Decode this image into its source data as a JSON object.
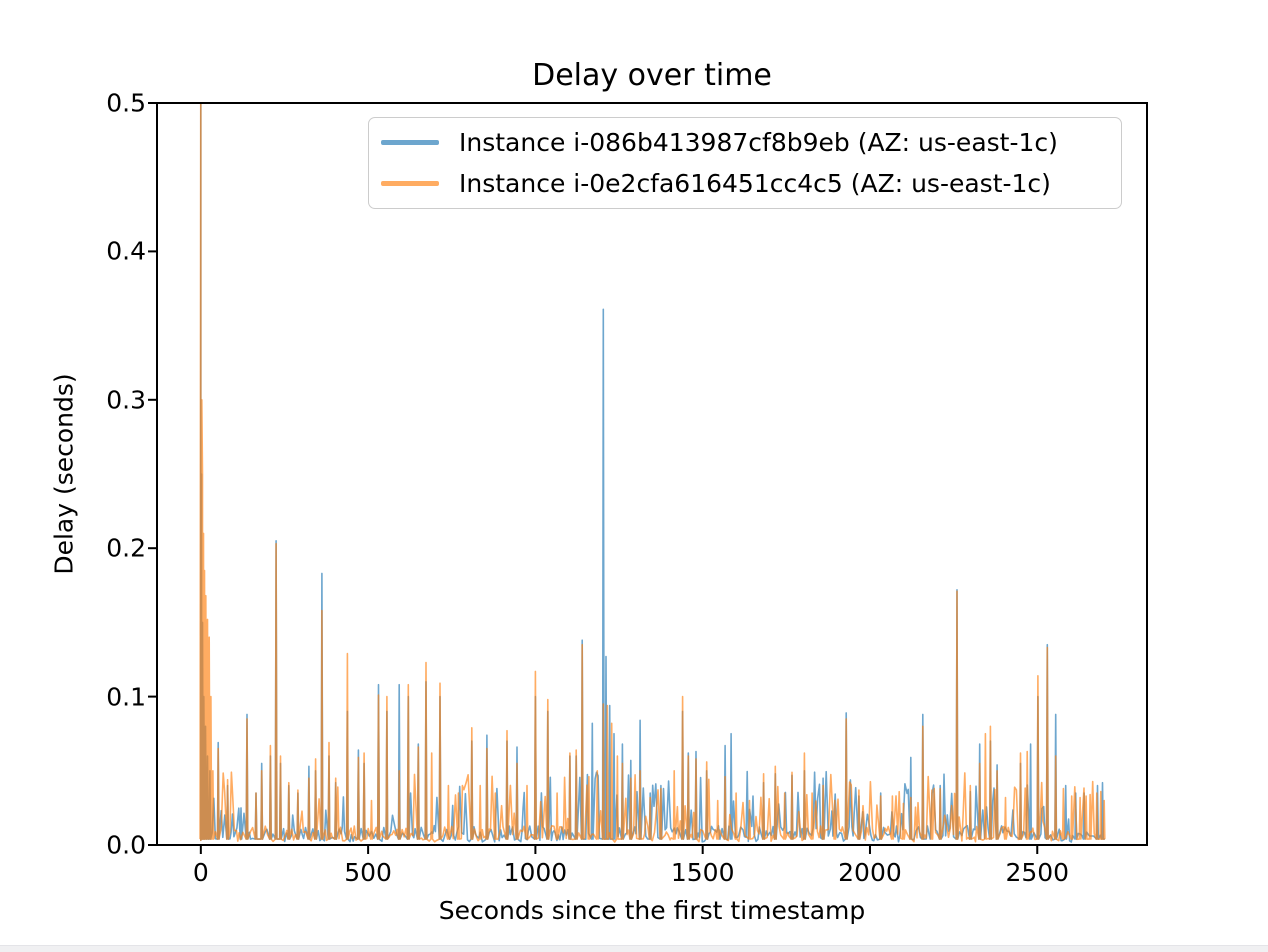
{
  "window": {
    "background_color": "#ffffff",
    "bottom_strip_color": "#f0f0f2"
  },
  "chart_data": {
    "type": "line",
    "title": "Delay over time",
    "xlabel": "Seconds since the first timestamp",
    "ylabel": "Delay (seconds)",
    "xlim": [
      -131,
      2828
    ],
    "ylim": [
      0,
      0.5
    ],
    "grid": false,
    "legend_position": "upper center",
    "axis_color": "#000000",
    "xticks": [
      {
        "label": "0",
        "value": 0
      },
      {
        "label": "500",
        "value": 500
      },
      {
        "label": "1000",
        "value": 1000
      },
      {
        "label": "1500",
        "value": 1500
      },
      {
        "label": "2000",
        "value": 2000
      },
      {
        "label": "2500",
        "value": 2500
      }
    ],
    "yticks": [
      {
        "label": "0.0",
        "value": 0.0
      },
      {
        "label": "0.1",
        "value": 0.1
      },
      {
        "label": "0.2",
        "value": 0.2
      },
      {
        "label": "0.3",
        "value": 0.3
      },
      {
        "label": "0.4",
        "value": 0.4
      },
      {
        "label": "0.5",
        "value": 0.5
      }
    ],
    "series": [
      {
        "name": "Instance i-086b413987cf8b9eb (AZ: us-east-1c)",
        "color": "#1f77b4",
        "alpha": 0.65,
        "baseline": 0.004,
        "x_start": 0,
        "x_end": 2702,
        "spikes": [
          [
            0,
            0.55
          ],
          [
            2,
            0.25
          ],
          [
            5,
            0.15
          ],
          [
            9,
            0.1
          ],
          [
            14,
            0.08
          ],
          [
            20,
            0.06
          ],
          [
            27,
            0.05
          ],
          [
            52,
            0.069
          ],
          [
            80,
            0.04
          ],
          [
            120,
            0.025
          ],
          [
            138,
            0.088
          ],
          [
            165,
            0.035
          ],
          [
            182,
            0.055
          ],
          [
            208,
            0.06
          ],
          [
            225,
            0.205
          ],
          [
            238,
            0.055
          ],
          [
            263,
            0.04
          ],
          [
            290,
            0.035
          ],
          [
            323,
            0.053
          ],
          [
            343,
            0.05
          ],
          [
            362,
            0.183
          ],
          [
            383,
            0.06
          ],
          [
            403,
            0.042
          ],
          [
            438,
            0.09
          ],
          [
            471,
            0.064
          ],
          [
            488,
            0.055
          ],
          [
            531,
            0.108
          ],
          [
            556,
            0.09
          ],
          [
            593,
            0.108
          ],
          [
            620,
            0.1
          ],
          [
            650,
            0.068
          ],
          [
            673,
            0.11
          ],
          [
            715,
            0.1
          ],
          [
            810,
            0.07
          ],
          [
            855,
            0.074
          ],
          [
            915,
            0.07
          ],
          [
            945,
            0.066
          ],
          [
            1000,
            0.1
          ],
          [
            1037,
            0.09
          ],
          [
            1103,
            0.06
          ],
          [
            1122,
            0.06
          ],
          [
            1140,
            0.138
          ],
          [
            1170,
            0.082
          ],
          [
            1203,
            0.361
          ],
          [
            1211,
            0.127
          ],
          [
            1222,
            0.094
          ],
          [
            1235,
            0.075
          ],
          [
            1260,
            0.068
          ],
          [
            1285,
            0.057
          ],
          [
            1313,
            0.084
          ],
          [
            1343,
            0.035
          ],
          [
            1375,
            0.04
          ],
          [
            1440,
            0.09
          ],
          [
            1457,
            0.062
          ],
          [
            1480,
            0.063
          ],
          [
            1512,
            0.05
          ],
          [
            1567,
            0.067
          ],
          [
            1585,
            0.075
          ],
          [
            1682,
            0.042
          ],
          [
            1717,
            0.048
          ],
          [
            1767,
            0.047
          ],
          [
            1804,
            0.05
          ],
          [
            1860,
            0.045
          ],
          [
            1929,
            0.089
          ],
          [
            1967,
            0.033
          ],
          [
            2032,
            0.035
          ],
          [
            2122,
            0.059
          ],
          [
            2158,
            0.088
          ],
          [
            2210,
            0.04
          ],
          [
            2260,
            0.172
          ],
          [
            2300,
            0.036
          ],
          [
            2328,
            0.068
          ],
          [
            2360,
            0.07
          ],
          [
            2380,
            0.054
          ],
          [
            2450,
            0.055
          ],
          [
            2480,
            0.068
          ],
          [
            2502,
            0.1
          ],
          [
            2530,
            0.135
          ],
          [
            2555,
            0.088
          ],
          [
            2585,
            0.04
          ],
          [
            2615,
            0.035
          ],
          [
            2640,
            0.035
          ],
          [
            2680,
            0.04
          ],
          [
            2695,
            0.042
          ]
        ]
      },
      {
        "name": "Instance i-0e2cfa616451cc4c5 (AZ: us-east-1c)",
        "color": "#ff7f0e",
        "alpha": 0.65,
        "baseline": 0.004,
        "x_start": 0,
        "x_end": 2702,
        "spikes": [
          [
            0,
            0.55
          ],
          [
            3,
            0.3
          ],
          [
            5,
            0.25
          ],
          [
            8,
            0.21
          ],
          [
            11,
            0.185
          ],
          [
            15,
            0.168
          ],
          [
            20,
            0.152
          ],
          [
            25,
            0.14
          ],
          [
            30,
            0.1
          ],
          [
            36,
            0.05
          ],
          [
            52,
            0.065
          ],
          [
            80,
            0.044
          ],
          [
            138,
            0.085
          ],
          [
            165,
            0.035
          ],
          [
            182,
            0.05
          ],
          [
            208,
            0.067
          ],
          [
            225,
            0.203
          ],
          [
            238,
            0.06
          ],
          [
            263,
            0.042
          ],
          [
            290,
            0.037
          ],
          [
            323,
            0.045
          ],
          [
            343,
            0.058
          ],
          [
            362,
            0.158
          ],
          [
            383,
            0.069
          ],
          [
            403,
            0.045
          ],
          [
            438,
            0.129
          ],
          [
            471,
            0.059
          ],
          [
            488,
            0.062
          ],
          [
            510,
            0.03
          ],
          [
            531,
            0.101
          ],
          [
            556,
            0.1
          ],
          [
            593,
            0.05
          ],
          [
            620,
            0.108
          ],
          [
            650,
            0.066
          ],
          [
            673,
            0.123
          ],
          [
            690,
            0.062
          ],
          [
            715,
            0.109
          ],
          [
            740,
            0.04
          ],
          [
            770,
            0.035
          ],
          [
            810,
            0.079
          ],
          [
            835,
            0.04
          ],
          [
            855,
            0.065
          ],
          [
            880,
            0.035
          ],
          [
            915,
            0.077
          ],
          [
            945,
            0.055
          ],
          [
            975,
            0.04
          ],
          [
            1000,
            0.117
          ],
          [
            1037,
            0.098
          ],
          [
            1065,
            0.035
          ],
          [
            1103,
            0.062
          ],
          [
            1122,
            0.064
          ],
          [
            1140,
            0.135
          ],
          [
            1160,
            0.046
          ],
          [
            1185,
            0.05
          ],
          [
            1203,
            0.095
          ],
          [
            1215,
            0.094
          ],
          [
            1228,
            0.082
          ],
          [
            1245,
            0.06
          ],
          [
            1260,
            0.055
          ],
          [
            1285,
            0.045
          ],
          [
            1313,
            0.05
          ],
          [
            1343,
            0.032
          ],
          [
            1375,
            0.038
          ],
          [
            1415,
            0.05
          ],
          [
            1440,
            0.1
          ],
          [
            1457,
            0.06
          ],
          [
            1480,
            0.058
          ],
          [
            1512,
            0.056
          ],
          [
            1545,
            0.03
          ],
          [
            1567,
            0.046
          ],
          [
            1600,
            0.035
          ],
          [
            1640,
            0.03
          ],
          [
            1682,
            0.048
          ],
          [
            1717,
            0.053
          ],
          [
            1745,
            0.035
          ],
          [
            1767,
            0.049
          ],
          [
            1804,
            0.062
          ],
          [
            1827,
            0.035
          ],
          [
            1860,
            0.04
          ],
          [
            1895,
            0.03
          ],
          [
            1929,
            0.085
          ],
          [
            1967,
            0.037
          ],
          [
            2032,
            0.033
          ],
          [
            2067,
            0.033
          ],
          [
            2100,
            0.028
          ],
          [
            2122,
            0.032
          ],
          [
            2158,
            0.08
          ],
          [
            2185,
            0.037
          ],
          [
            2210,
            0.038
          ],
          [
            2260,
            0.171
          ],
          [
            2300,
            0.04
          ],
          [
            2328,
            0.055
          ],
          [
            2345,
            0.075
          ],
          [
            2360,
            0.08
          ],
          [
            2380,
            0.05
          ],
          [
            2405,
            0.032
          ],
          [
            2450,
            0.062
          ],
          [
            2470,
            0.063
          ],
          [
            2502,
            0.114
          ],
          [
            2530,
            0.133
          ],
          [
            2555,
            0.06
          ],
          [
            2578,
            0.038
          ],
          [
            2603,
            0.033
          ],
          [
            2628,
            0.032
          ],
          [
            2646,
            0.033
          ],
          [
            2658,
            0.034
          ],
          [
            2678,
            0.035
          ],
          [
            2690,
            0.036
          ],
          [
            2700,
            0.03
          ]
        ]
      }
    ],
    "baseline_noise": {
      "seed": 1337,
      "step_min": 3,
      "step_max": 7,
      "base_min": 0.002,
      "base_max": 0.013,
      "bump_prob": 0.2,
      "bump_min": 0.016,
      "bump_max": 0.05,
      "spike_exclusion": 6
    }
  }
}
